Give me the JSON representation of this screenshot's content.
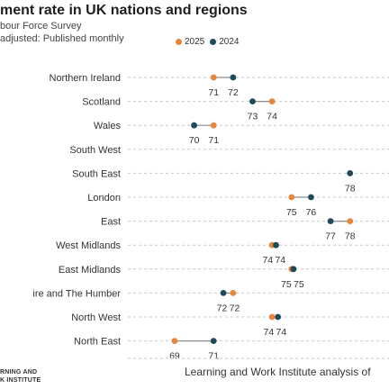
{
  "header": {
    "title": "ment rate in UK nations and regions",
    "subtitle_line1": "bour Force Survey",
    "subtitle_line2": "adjusted: Published monthly"
  },
  "footer": {
    "logo_line1": "RNING AND",
    "logo_line2": "K INSTITUTE",
    "source": "Learning and Work Institute analysis of"
  },
  "colors": {
    "y2025": "#e8853d",
    "y2024": "#1f4a5c",
    "grid": "#c9c9c9",
    "connector": "#8c8c8c"
  },
  "chart_data": {
    "type": "dumbbell",
    "categories": [
      "Northern Ireland",
      "Scotland",
      "Wales",
      "South West",
      "South East",
      "London",
      "East",
      "West Midlands",
      "East Midlands",
      "ire and The Humber",
      "North West",
      "North East"
    ],
    "series": [
      {
        "name": "2025",
        "values": [
          71.0,
          74.0,
          71.0,
          null,
          null,
          75.0,
          78.0,
          74.0,
          75.0,
          72.0,
          74.0,
          69.0
        ],
        "labels": [
          "71",
          "74",
          "71",
          "",
          "",
          "75",
          "78",
          "74",
          "75",
          "72",
          "74",
          "69"
        ]
      },
      {
        "name": "2024",
        "values": [
          72.0,
          73.0,
          70.0,
          null,
          78.0,
          76.0,
          77.0,
          74.2,
          75.1,
          71.5,
          74.3,
          71.0
        ],
        "labels": [
          "72",
          "73",
          "70",
          "",
          "78",
          "76",
          "77",
          "74",
          "75",
          "72",
          "74",
          "71"
        ]
      }
    ],
    "x_range": [
      66.6,
      80.0
    ],
    "grid": "horizontal dashed",
    "legend_position": "top"
  }
}
